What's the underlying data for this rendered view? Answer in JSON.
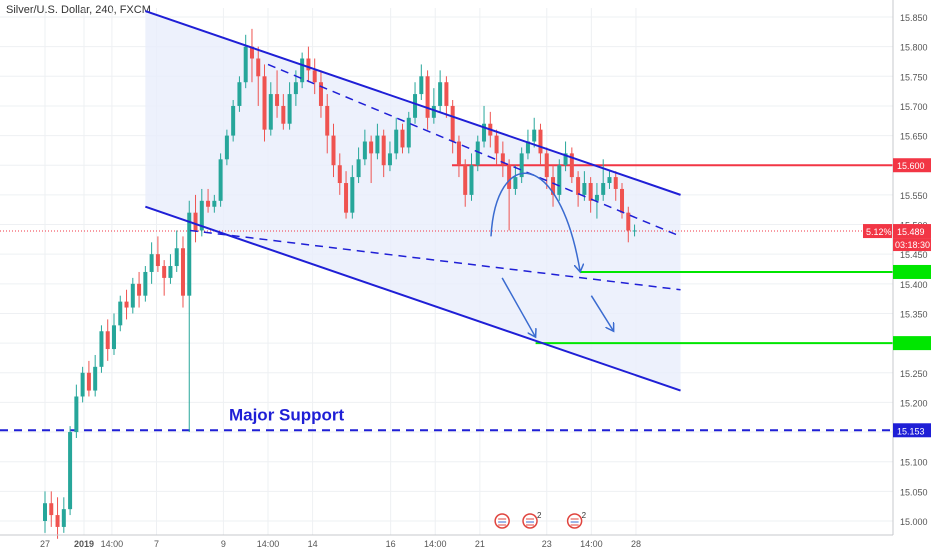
{
  "chart_data": {
    "type": "candlestick",
    "title": "Silver/U.S. Dollar, 240, FXCM",
    "y_range": [
      14.98,
      15.87
    ],
    "y_ticks": [
      "15.850",
      "15.800",
      "15.750",
      "15.700",
      "15.650",
      "15.600",
      "15.550",
      "15.500",
      "15.450",
      "15.400",
      "15.350",
      "15.300",
      "15.250",
      "15.200",
      "15.150",
      "15.100",
      "15.050",
      "15.000"
    ],
    "x_labels": [
      {
        "t": 0,
        "label": "27"
      },
      {
        "t": 3.5,
        "label": "2019"
      },
      {
        "t": 6,
        "label": "14:00"
      },
      {
        "t": 10,
        "label": "7"
      },
      {
        "t": 16,
        "label": "9"
      },
      {
        "t": 20,
        "label": "14:00"
      },
      {
        "t": 24,
        "label": "14"
      },
      {
        "t": 31,
        "label": "16"
      },
      {
        "t": 35,
        "label": "14:00"
      },
      {
        "t": 39,
        "label": "21"
      },
      {
        "t": 45,
        "label": "23"
      },
      {
        "t": 49,
        "label": "14:00"
      },
      {
        "t": 53,
        "label": "28"
      }
    ],
    "candles": [
      [
        15.0,
        15.03,
        14.98,
        15.05
      ],
      [
        15.03,
        15.01,
        14.99,
        15.05
      ],
      [
        15.01,
        14.99,
        14.97,
        15.04
      ],
      [
        14.99,
        15.02,
        14.98,
        15.04
      ],
      [
        15.02,
        15.15,
        15.01,
        15.16
      ],
      [
        15.15,
        15.21,
        15.14,
        15.23
      ],
      [
        15.21,
        15.25,
        15.2,
        15.26
      ],
      [
        15.25,
        15.22,
        15.21,
        15.27
      ],
      [
        15.22,
        15.26,
        15.21,
        15.28
      ],
      [
        15.26,
        15.32,
        15.25,
        15.33
      ],
      [
        15.32,
        15.29,
        15.27,
        15.34
      ],
      [
        15.29,
        15.33,
        15.28,
        15.35
      ],
      [
        15.33,
        15.37,
        15.32,
        15.38
      ],
      [
        15.37,
        15.36,
        15.34,
        15.39
      ],
      [
        15.36,
        15.4,
        15.35,
        15.41
      ],
      [
        15.4,
        15.38,
        15.36,
        15.42
      ],
      [
        15.38,
        15.42,
        15.37,
        15.43
      ],
      [
        15.42,
        15.45,
        15.4,
        15.47
      ],
      [
        15.45,
        15.43,
        15.42,
        15.48
      ],
      [
        15.43,
        15.41,
        15.38,
        15.44
      ],
      [
        15.41,
        15.43,
        15.4,
        15.45
      ],
      [
        15.43,
        15.46,
        15.42,
        15.49
      ],
      [
        15.46,
        15.38,
        15.36,
        15.48
      ],
      [
        15.38,
        15.52,
        15.15,
        15.54
      ],
      [
        15.52,
        15.49,
        15.47,
        15.55
      ],
      [
        15.49,
        15.54,
        15.48,
        15.56
      ],
      [
        15.54,
        15.53,
        15.52,
        15.56
      ],
      [
        15.53,
        15.54,
        15.52,
        15.55
      ],
      [
        15.54,
        15.61,
        15.53,
        15.62
      ],
      [
        15.61,
        15.65,
        15.6,
        15.66
      ],
      [
        15.65,
        15.7,
        15.64,
        15.71
      ],
      [
        15.7,
        15.74,
        15.69,
        15.75
      ],
      [
        15.74,
        15.8,
        15.73,
        15.82
      ],
      [
        15.8,
        15.78,
        15.74,
        15.83
      ],
      [
        15.78,
        15.75,
        15.7,
        15.8
      ],
      [
        15.75,
        15.66,
        15.64,
        15.77
      ],
      [
        15.66,
        15.72,
        15.65,
        15.74
      ],
      [
        15.72,
        15.7,
        15.68,
        15.76
      ],
      [
        15.7,
        15.67,
        15.66,
        15.72
      ],
      [
        15.67,
        15.72,
        15.66,
        15.74
      ],
      [
        15.72,
        15.74,
        15.7,
        15.76
      ],
      [
        15.74,
        15.78,
        15.73,
        15.79
      ],
      [
        15.78,
        15.76,
        15.74,
        15.8
      ],
      [
        15.76,
        15.74,
        15.72,
        15.78
      ],
      [
        15.74,
        15.7,
        15.68,
        15.76
      ],
      [
        15.7,
        15.65,
        15.62,
        15.72
      ],
      [
        15.65,
        15.6,
        15.58,
        15.67
      ],
      [
        15.6,
        15.57,
        15.55,
        15.62
      ],
      [
        15.57,
        15.52,
        15.51,
        15.59
      ],
      [
        15.52,
        15.58,
        15.51,
        15.6
      ],
      [
        15.58,
        15.61,
        15.57,
        15.63
      ],
      [
        15.61,
        15.64,
        15.6,
        15.66
      ],
      [
        15.64,
        15.62,
        15.57,
        15.65
      ],
      [
        15.62,
        15.65,
        15.61,
        15.67
      ],
      [
        15.65,
        15.6,
        15.58,
        15.66
      ],
      [
        15.6,
        15.62,
        15.59,
        15.64
      ],
      [
        15.62,
        15.66,
        15.61,
        15.68
      ],
      [
        15.66,
        15.63,
        15.62,
        15.67
      ],
      [
        15.63,
        15.68,
        15.62,
        15.69
      ],
      [
        15.68,
        15.72,
        15.67,
        15.74
      ],
      [
        15.72,
        15.75,
        15.71,
        15.77
      ],
      [
        15.75,
        15.68,
        15.66,
        15.76
      ],
      [
        15.68,
        15.7,
        15.67,
        15.73
      ],
      [
        15.7,
        15.74,
        15.69,
        15.76
      ],
      [
        15.74,
        15.7,
        15.68,
        15.75
      ],
      [
        15.7,
        15.64,
        15.62,
        15.71
      ],
      [
        15.64,
        15.6,
        15.58,
        15.65
      ],
      [
        15.6,
        15.55,
        15.53,
        15.61
      ],
      [
        15.55,
        15.6,
        15.54,
        15.62
      ],
      [
        15.6,
        15.64,
        15.59,
        15.65
      ],
      [
        15.64,
        15.67,
        15.63,
        15.7
      ],
      [
        15.67,
        15.65,
        15.63,
        15.69
      ],
      [
        15.65,
        15.62,
        15.6,
        15.66
      ],
      [
        15.62,
        15.6,
        15.58,
        15.64
      ],
      [
        15.6,
        15.56,
        15.49,
        15.61
      ],
      [
        15.56,
        15.58,
        15.55,
        15.6
      ],
      [
        15.58,
        15.62,
        15.57,
        15.63
      ],
      [
        15.62,
        15.64,
        15.61,
        15.66
      ],
      [
        15.64,
        15.66,
        15.63,
        15.68
      ],
      [
        15.66,
        15.62,
        15.6,
        15.67
      ],
      [
        15.62,
        15.58,
        15.56,
        15.63
      ],
      [
        15.58,
        15.55,
        15.53,
        15.6
      ],
      [
        15.55,
        15.6,
        15.54,
        15.61
      ],
      [
        15.6,
        15.62,
        15.59,
        15.64
      ],
      [
        15.62,
        15.58,
        15.57,
        15.63
      ],
      [
        15.58,
        15.55,
        15.53,
        15.59
      ],
      [
        15.55,
        15.57,
        15.54,
        15.59
      ],
      [
        15.57,
        15.54,
        15.52,
        15.58
      ],
      [
        15.54,
        15.55,
        15.51,
        15.57
      ],
      [
        15.55,
        15.57,
        15.54,
        15.61
      ],
      [
        15.57,
        15.58,
        15.56,
        15.59
      ],
      [
        15.58,
        15.56,
        15.54,
        15.59
      ],
      [
        15.56,
        15.52,
        15.51,
        15.57
      ],
      [
        15.52,
        15.49,
        15.47,
        15.53
      ],
      [
        15.49,
        15.49,
        15.48,
        15.5
      ]
    ],
    "candle_t_start": 0,
    "candle_t_step": 0.5625,
    "trend_lines": [
      {
        "name": "channel-upper",
        "color": "#1f1fd6",
        "dash": false,
        "width": 2,
        "points": [
          [
            9,
            15.86
          ],
          [
            57,
            15.55
          ]
        ]
      },
      {
        "name": "channel-lower",
        "color": "#1f1fd6",
        "dash": false,
        "width": 2,
        "points": [
          [
            9,
            15.53
          ],
          [
            57,
            15.22
          ]
        ]
      },
      {
        "name": "inner-upper-dashed",
        "color": "#1f1fd6",
        "dash": true,
        "width": 1.5,
        "points": [
          [
            20,
            15.77
          ],
          [
            57,
            15.48
          ]
        ]
      },
      {
        "name": "inner-lower-dashed",
        "color": "#1f1fd6",
        "dash": true,
        "width": 1.5,
        "points": [
          [
            13,
            15.49
          ],
          [
            57,
            15.39
          ]
        ]
      }
    ],
    "horizontal_levels": [
      {
        "name": "resistance-15600",
        "price": 15.6,
        "label": "15.600",
        "color": "#f23645",
        "t_start": 36.5
      },
      {
        "name": "target-1",
        "price": 15.42,
        "label": "",
        "color": "#00e600",
        "t_start": 48
      },
      {
        "name": "target-2",
        "price": 15.3,
        "label": "",
        "color": "#00e600",
        "t_start": 44
      }
    ],
    "major_support": {
      "price": 15.153,
      "label": "15.153",
      "text": "Major Support",
      "color": "#1f1fd6"
    },
    "current_price": {
      "price": 15.489,
      "label": "15.489",
      "change": "5.12%",
      "countdown": "03:18:30",
      "color": "#f23645"
    },
    "projection_arrows": [
      {
        "name": "arc-arrow",
        "kind": "arc",
        "color": "#3a6bd0",
        "from": [
          40,
          15.48
        ],
        "peak": [
          43,
          15.58
        ],
        "to": [
          48,
          15.42
        ]
      },
      {
        "name": "drop-arrow-1",
        "kind": "line",
        "color": "#3a6bd0",
        "from": [
          41,
          15.41
        ],
        "to": [
          44,
          15.31
        ]
      },
      {
        "name": "drop-arrow-2",
        "kind": "line",
        "color": "#3a6bd0",
        "from": [
          49,
          15.38
        ],
        "to": [
          51,
          15.32
        ]
      }
    ],
    "event_icons": [
      {
        "name": "us-event-icon-1",
        "t": 41,
        "badge": ""
      },
      {
        "name": "us-event-icon-2",
        "t": 43.5,
        "badge": "2"
      },
      {
        "name": "us-event-icon-3",
        "t": 47.5,
        "badge": "2"
      }
    ],
    "colors": {
      "up": "#26a69a",
      "down": "#ef5350",
      "channel_fill": "#e8eefb",
      "grid": "#eef0f3"
    }
  }
}
